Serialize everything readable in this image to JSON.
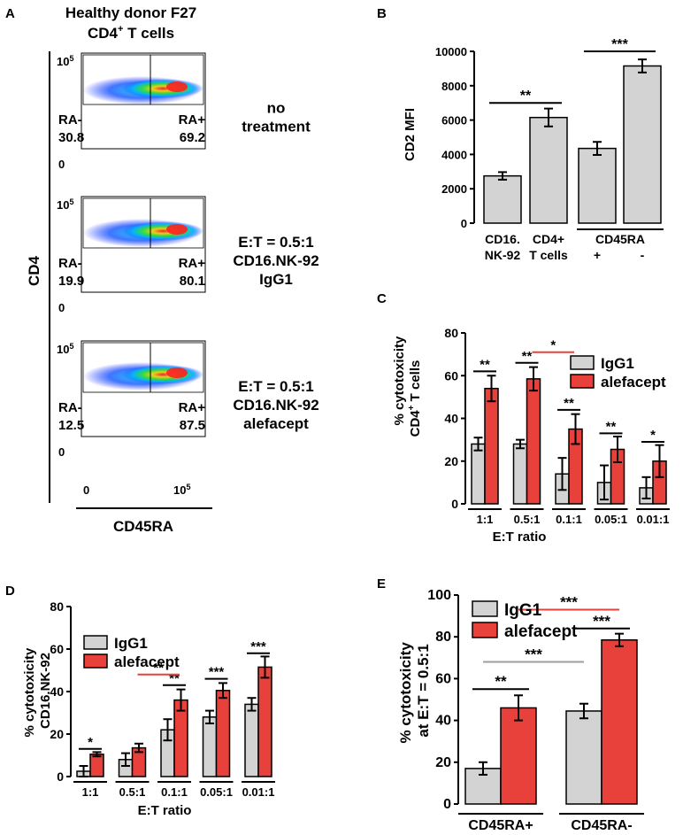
{
  "colors": {
    "grey": "#d3d3d3",
    "red": "#e8403a",
    "sig_red": "#e8403a",
    "sig_grey": "#9e9e9e",
    "axis": "#000000"
  },
  "panelA": {
    "letter": "A",
    "title_line1": "Healthy donor F27",
    "title_line2": "CD4",
    "title_sup": "+",
    "title_line2_rest": " T cells",
    "y_axis_label": "CD4",
    "x_axis_label": "CD45RA",
    "tick_0": "0",
    "tick_base": "10",
    "tick_exp": "5",
    "plots": [
      {
        "gate_left": "RA-",
        "val_left": "30.8",
        "gate_right": "RA+",
        "val_right": "69.2",
        "label_lines": [
          "no",
          "treatment"
        ],
        "density_fraction_right": 0.692
      },
      {
        "gate_left": "RA-",
        "val_left": "19.9",
        "gate_right": "RA+",
        "val_right": "80.1",
        "label_lines": [
          "E:T = 0.5:1",
          "CD16.NK-92",
          "IgG1"
        ],
        "density_fraction_right": 0.801
      },
      {
        "gate_left": "RA-",
        "val_left": "12.5",
        "gate_right": "RA+",
        "val_right": "87.5",
        "label_lines": [
          "E:T = 0.5:1",
          "CD16.NK-92",
          "alefacept"
        ],
        "density_fraction_right": 0.875
      }
    ]
  },
  "chart_data": [
    {
      "id": "B",
      "type": "bar",
      "letter": "B",
      "ylabel": "CD2 MFI",
      "ylim": [
        0,
        10000
      ],
      "yticks": [
        0,
        2000,
        4000,
        6000,
        8000,
        10000
      ],
      "categories": [
        "CD16.NK-92",
        "CD4+ T cells",
        "CD45RA +",
        "CD45RA -"
      ],
      "cat_label_lines": [
        [
          "CD16.",
          "NK-92"
        ],
        [
          "CD4+",
          "T cells"
        ]
      ],
      "group_label": "CD45RA",
      "group_sub": [
        "+",
        "-"
      ],
      "values": [
        2750,
        6150,
        4350,
        9150
      ],
      "errors": [
        220,
        520,
        380,
        380
      ],
      "significance": [
        {
          "from": 0,
          "to": 1,
          "label": "**",
          "at": 7000
        },
        {
          "from": 2,
          "to": 3,
          "label": "***",
          "at": 10000
        }
      ]
    },
    {
      "id": "C",
      "type": "bar",
      "letter": "C",
      "ylabel_lines": [
        "% cytotoxicity",
        "CD4",
        "+",
        " T cells"
      ],
      "xlabel": "E:T ratio",
      "ylim": [
        0,
        80
      ],
      "yticks": [
        0,
        20,
        40,
        60,
        80
      ],
      "categories": [
        "1:1",
        "0.5:1",
        "0.1:1",
        "0.05:1",
        "0.01:1"
      ],
      "legend": [
        "IgG1",
        "alefacept"
      ],
      "series": [
        {
          "name": "IgG1",
          "values": [
            28,
            28,
            14,
            10,
            7.5
          ],
          "errors": [
            3,
            2,
            7.5,
            8,
            5
          ]
        },
        {
          "name": "alefacept",
          "values": [
            54,
            58.5,
            35,
            25.5,
            20
          ],
          "errors": [
            6,
            5.5,
            7,
            6,
            7.5
          ]
        }
      ],
      "significance": [
        {
          "cat": 0,
          "label": "**",
          "at": 62,
          "color": "black"
        },
        {
          "cat": 1,
          "label": "**",
          "at": 66,
          "color": "black"
        },
        {
          "cat": 2,
          "label": "**",
          "at": 44,
          "color": "black"
        },
        {
          "cat": 3,
          "label": "**",
          "at": 33,
          "color": "black"
        },
        {
          "cat": 4,
          "label": "*",
          "at": 29,
          "color": "black"
        },
        {
          "from_cat": 1,
          "to_cat": 2,
          "label": "*",
          "at": 71,
          "color": "red"
        }
      ]
    },
    {
      "id": "D",
      "type": "bar",
      "letter": "D",
      "ylabel_lines": [
        "% cytotoxicity",
        "CD16.NK-92"
      ],
      "xlabel": "E:T ratio",
      "ylim": [
        0,
        80
      ],
      "yticks": [
        0,
        20,
        40,
        60,
        80
      ],
      "categories": [
        "1:1",
        "0.5:1",
        "0.1:1",
        "0.05:1",
        "0.01:1"
      ],
      "legend": [
        "IgG1",
        "alefacept"
      ],
      "series": [
        {
          "name": "IgG1",
          "values": [
            2.5,
            8,
            22,
            28,
            34
          ],
          "errors": [
            2.5,
            3,
            5,
            3,
            3
          ]
        },
        {
          "name": "alefacept",
          "values": [
            10.5,
            13.5,
            36,
            40.5,
            51.5
          ],
          "errors": [
            1,
            2,
            5,
            3.5,
            5
          ]
        }
      ],
      "significance": [
        {
          "cat": 0,
          "label": "*",
          "at": 13,
          "color": "black"
        },
        {
          "cat": 2,
          "label": "**",
          "at": 43,
          "color": "black"
        },
        {
          "cat": 3,
          "label": "***",
          "at": 46,
          "color": "black"
        },
        {
          "cat": 4,
          "label": "***",
          "at": 58,
          "color": "black"
        },
        {
          "from_cat": 1,
          "to_cat": 2,
          "label": "**",
          "at": 48,
          "color": "red"
        }
      ]
    },
    {
      "id": "E",
      "type": "bar",
      "letter": "E",
      "ylabel_lines": [
        "% cytotoxicity",
        "at E:T = 0.5:1"
      ],
      "ylim": [
        0,
        100
      ],
      "yticks": [
        0,
        20,
        40,
        60,
        80,
        100
      ],
      "categories": [
        "CD45RA+",
        "CD45RA-"
      ],
      "legend": [
        "IgG1",
        "alefacept"
      ],
      "series": [
        {
          "name": "IgG1",
          "values": [
            17,
            44.5
          ],
          "errors": [
            3,
            3.5
          ]
        },
        {
          "name": "alefacept",
          "values": [
            46,
            78.5
          ],
          "errors": [
            6,
            3
          ]
        }
      ],
      "significance": [
        {
          "cat": 0,
          "label": "**",
          "at": 55,
          "color": "black"
        },
        {
          "cat": 1,
          "label": "***",
          "at": 84,
          "color": "black"
        },
        {
          "from": [
            0,
            "alefacept"
          ],
          "to": [
            1,
            "alefacept"
          ],
          "label": "***",
          "at": 93,
          "color": "red"
        },
        {
          "from": [
            0,
            "IgG1"
          ],
          "to": [
            1,
            "IgG1"
          ],
          "label": "***",
          "at": 68,
          "color": "grey"
        }
      ]
    }
  ]
}
